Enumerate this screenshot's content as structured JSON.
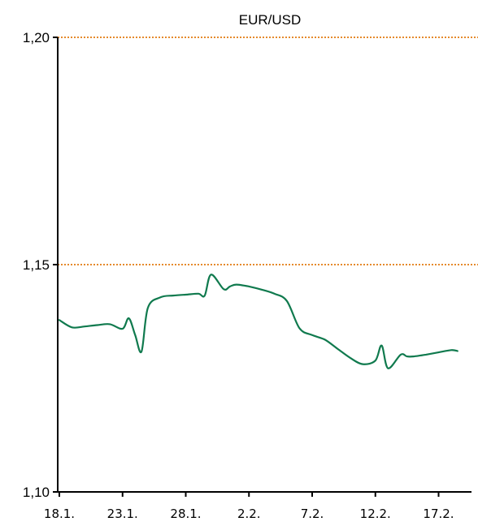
{
  "chart_data": {
    "type": "line",
    "title": "EUR/USD",
    "xlabel": "",
    "ylabel": "",
    "ylim": [
      1.1,
      1.2
    ],
    "yticks": [
      "1,10",
      "1,15",
      "1,20"
    ],
    "ytick_values": [
      1.1,
      1.15,
      1.2
    ],
    "xticks": [
      "18.1.",
      "23.1.",
      "28.1.",
      "2.2.",
      "7.2.",
      "12.2.",
      "17.2."
    ],
    "xtick_days": [
      0,
      5,
      10,
      15,
      20,
      25,
      30
    ],
    "grid": "horizontal dotted at 1,15 and 1,20",
    "colors": {
      "line": "#107a4e",
      "gridline": "#e58a2c",
      "axis": "#000000"
    },
    "series": [
      {
        "x": [
          "18.1.",
          "19.1.",
          "20.1.",
          "21.1.",
          "22.1.",
          "23.1.",
          "23.1.",
          "24.1.",
          "24.1.",
          "25.1.",
          "26.1.",
          "27.1.",
          "28.1.",
          "29.1.",
          "29.1.",
          "30.1.",
          "31.1.",
          "31.1.",
          "1.2.",
          "2.2.",
          "3.2.",
          "4.2.",
          "5.2.",
          "6.2.",
          "7.2.",
          "8.2.",
          "9.2.",
          "10.2.",
          "11.2.",
          "12.2.",
          "12.2.",
          "13.2.",
          "14.2.",
          "14.2.",
          "15.2.",
          "16.2.",
          "17.2.",
          "18.2.",
          "18.2."
        ],
        "values": [
          1.1378,
          1.1362,
          1.1364,
          1.1367,
          1.1369,
          1.1359,
          1.1382,
          1.1345,
          1.1309,
          1.1405,
          1.1428,
          1.1432,
          1.1434,
          1.1436,
          1.1432,
          1.1478,
          1.1446,
          1.1452,
          1.1456,
          1.1452,
          1.1445,
          1.1436,
          1.142,
          1.136,
          1.1345,
          1.1335,
          1.1315,
          1.1295,
          1.1281,
          1.1289,
          1.1322,
          1.1272,
          1.1302,
          1.1298,
          1.1298,
          1.1302,
          1.1307,
          1.1312,
          1.131
        ]
      }
    ]
  }
}
